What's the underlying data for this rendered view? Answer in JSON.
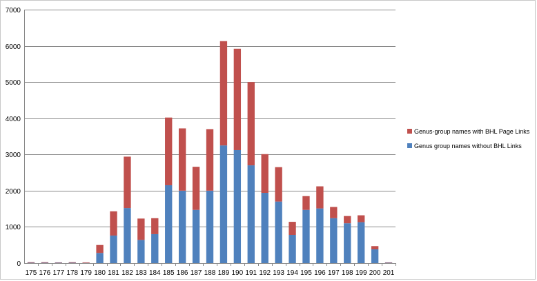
{
  "chart_data": {
    "type": "bar",
    "stacked": true,
    "title": "",
    "xlabel": "",
    "ylabel": "",
    "ylim": [
      0,
      7000
    ],
    "yticks": [
      0,
      1000,
      2000,
      3000,
      4000,
      5000,
      6000,
      7000
    ],
    "grid": true,
    "legend_position": "right",
    "categories": [
      "175",
      "176",
      "177",
      "178",
      "179",
      "180",
      "181",
      "182",
      "183",
      "184",
      "185",
      "186",
      "187",
      "188",
      "189",
      "190",
      "191",
      "192",
      "193",
      "194",
      "195",
      "196",
      "197",
      "198",
      "199",
      "200",
      "201"
    ],
    "series": [
      {
        "name": "Genus group names without BHL Links",
        "color": "#4f81bd",
        "values": [
          10,
          10,
          10,
          10,
          5,
          280,
          760,
          1520,
          640,
          800,
          2150,
          2000,
          1470,
          2000,
          3250,
          3120,
          2700,
          1940,
          1700,
          780,
          1470,
          1510,
          1240,
          1100,
          1130,
          380,
          10
        ]
      },
      {
        "name": "Genus-group names with BHL Page Links",
        "color": "#c0504d",
        "values": [
          15,
          15,
          10,
          15,
          15,
          220,
          670,
          1420,
          590,
          440,
          1870,
          1720,
          1190,
          1700,
          2880,
          2800,
          2300,
          1070,
          950,
          360,
          380,
          610,
          310,
          200,
          190,
          90,
          10
        ]
      }
    ]
  }
}
